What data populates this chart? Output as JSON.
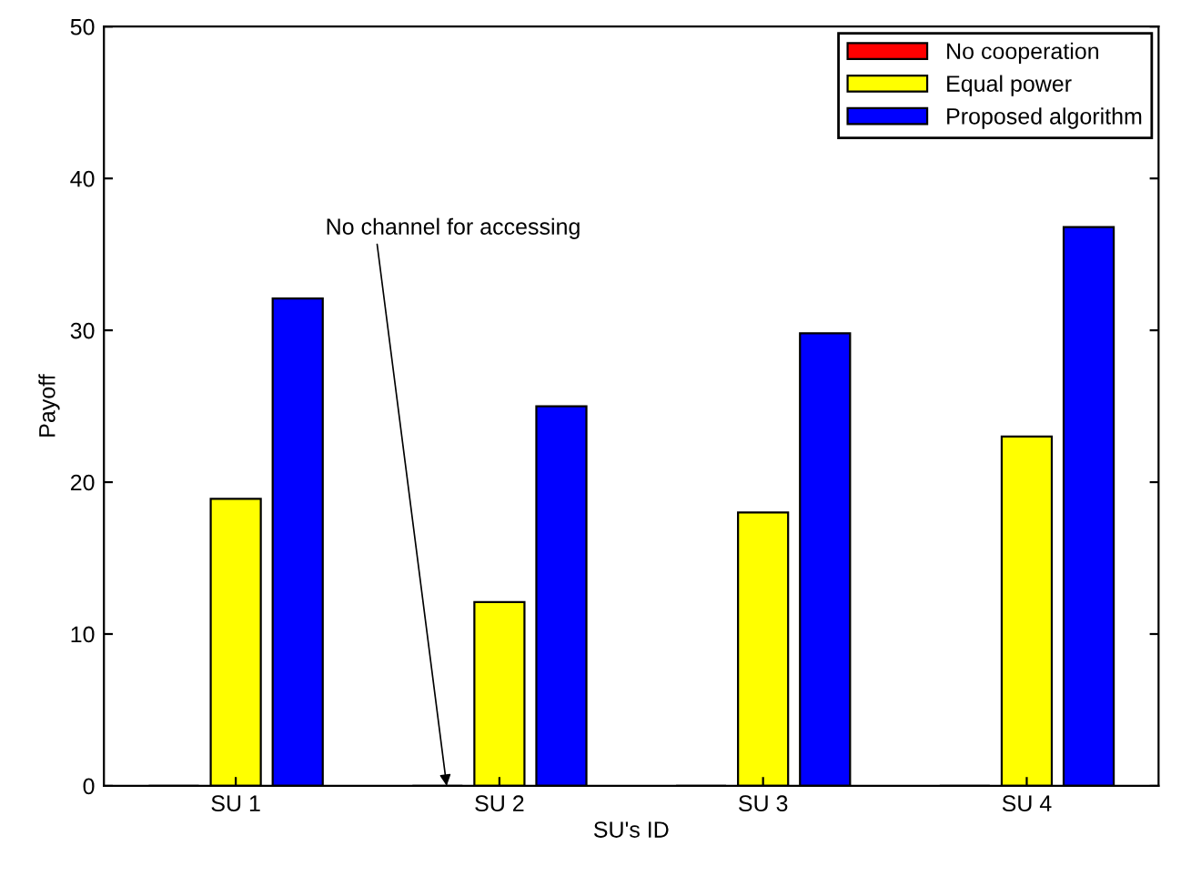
{
  "chart_data": {
    "type": "bar",
    "xlabel": "SU's ID",
    "ylabel": "Payoff",
    "categories": [
      "SU 1",
      "SU 2",
      "SU 3",
      "SU 4"
    ],
    "series": [
      {
        "name": "No cooperation",
        "color": "#ff0000",
        "values": [
          0,
          0,
          0,
          0
        ]
      },
      {
        "name": "Equal power",
        "color": "#ffff00",
        "values": [
          18.9,
          12.1,
          18.0,
          23.0
        ]
      },
      {
        "name": "Proposed algorithm",
        "color": "#0000ff",
        "values": [
          32.1,
          25.0,
          29.8,
          36.8
        ]
      }
    ],
    "ylim": [
      0,
      50
    ],
    "yticks": [
      0,
      10,
      20,
      30,
      40,
      50
    ],
    "grid": false,
    "legend": "top right",
    "annotations": [
      "No channel for accessing"
    ]
  }
}
